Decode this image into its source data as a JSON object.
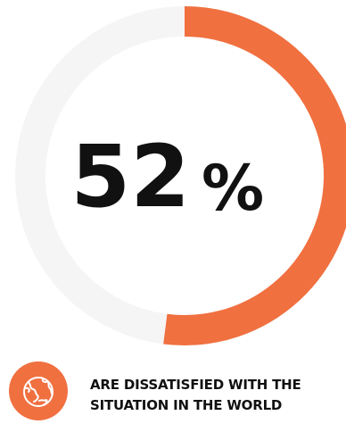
{
  "chart_data": {
    "type": "pie",
    "value": 52,
    "display_number": "52",
    "display_suffix": "%",
    "caption_lines": [
      "ARE DISSATISFIED WITH THE",
      "SITUATION IN THE WORLD"
    ],
    "colors": {
      "filled": "#F07040",
      "track": "#F6F5F5",
      "text": "#111111",
      "icon_bg": "#F07040",
      "icon_fg": "#FFFFFF"
    }
  },
  "icon": {
    "name": "globe-icon"
  }
}
